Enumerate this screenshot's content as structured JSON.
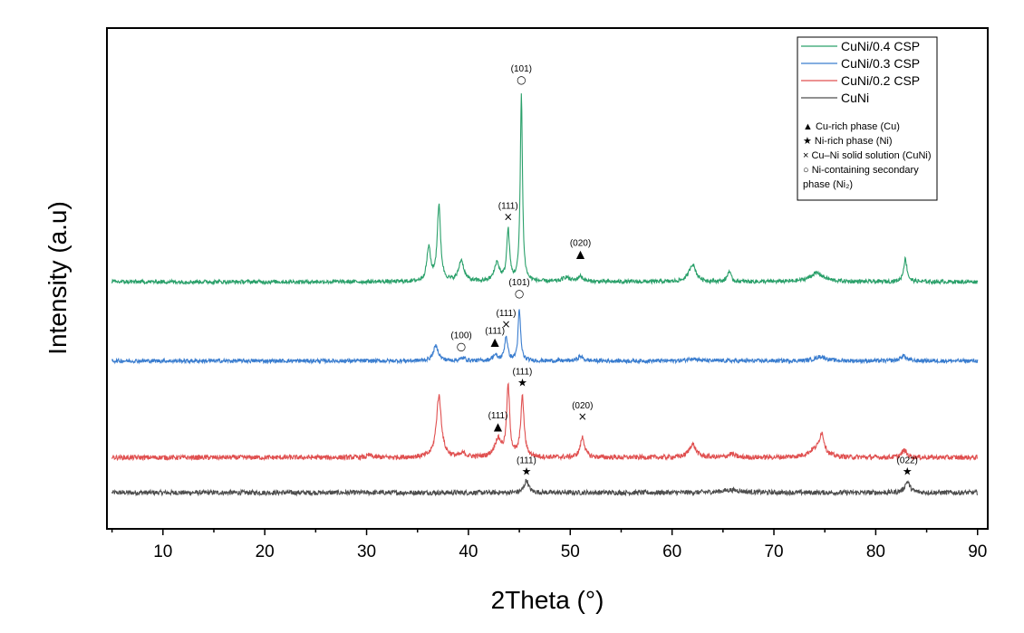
{
  "chart_data": {
    "type": "line",
    "title": "",
    "xlabel": "2Theta (°)",
    "ylabel": "Intensity (a.u)",
    "xlim": [
      4.5,
      91
    ],
    "x_ticks": [
      10,
      20,
      30,
      40,
      50,
      60,
      70,
      80,
      90
    ],
    "yticks_shown": false,
    "grid": false,
    "legend_position": "top-right",
    "series": [
      {
        "name": "CuNi",
        "color": "#4d4d4d",
        "baseline": 0.0,
        "noise": 0.55,
        "peaks": [
          {
            "x": 45.7,
            "height": 2.8,
            "width": 0.25
          },
          {
            "x": 65.8,
            "height": 0.6,
            "width": 1.2
          },
          {
            "x": 83.1,
            "height": 2.5,
            "width": 0.3
          }
        ]
      },
      {
        "name": "CuNi/0.2 CSP",
        "color": "#e05050",
        "baseline": 8.0,
        "noise": 0.55,
        "peaks": [
          {
            "x": 30.3,
            "height": 0.5,
            "width": 0.25
          },
          {
            "x": 37.1,
            "height": 14.0,
            "width": 0.3
          },
          {
            "x": 39.5,
            "height": 0.8,
            "width": 0.3
          },
          {
            "x": 42.9,
            "height": 4.0,
            "width": 0.4
          },
          {
            "x": 43.9,
            "height": 15.8,
            "width": 0.18
          },
          {
            "x": 45.3,
            "height": 13.5,
            "width": 0.2
          },
          {
            "x": 51.2,
            "height": 4.6,
            "width": 0.25
          },
          {
            "x": 62.0,
            "height": 3.0,
            "width": 0.4
          },
          {
            "x": 65.8,
            "height": 0.8,
            "width": 0.35
          },
          {
            "x": 74.7,
            "height": 4.8,
            "width": 0.3
          },
          {
            "x": 74.0,
            "height": 1.5,
            "width": 0.8
          },
          {
            "x": 82.8,
            "height": 1.6,
            "width": 0.3
          }
        ]
      },
      {
        "name": "CuNi/0.3 CSP",
        "color": "#3a7dcf",
        "baseline": 30.0,
        "noise": 0.45,
        "peaks": [
          {
            "x": 36.8,
            "height": 3.4,
            "width": 0.3
          },
          {
            "x": 39.5,
            "height": 0.6,
            "width": 0.3
          },
          {
            "x": 42.6,
            "height": 1.2,
            "width": 0.3
          },
          {
            "x": 43.7,
            "height": 5.5,
            "width": 0.18
          },
          {
            "x": 45.0,
            "height": 11.5,
            "width": 0.15
          },
          {
            "x": 51.0,
            "height": 1.0,
            "width": 0.3
          },
          {
            "x": 62.0,
            "height": 0.6,
            "width": 0.5
          },
          {
            "x": 74.6,
            "height": 1.0,
            "width": 0.6
          },
          {
            "x": 82.7,
            "height": 1.2,
            "width": 0.3
          }
        ]
      },
      {
        "name": "CuNi/0.4 CSP",
        "color": "#2aa06a",
        "baseline": 48.0,
        "noise": 0.45,
        "peaks": [
          {
            "x": 36.1,
            "height": 7.6,
            "width": 0.22
          },
          {
            "x": 37.1,
            "height": 17.2,
            "width": 0.2
          },
          {
            "x": 39.3,
            "height": 4.8,
            "width": 0.3
          },
          {
            "x": 42.8,
            "height": 4.2,
            "width": 0.3
          },
          {
            "x": 43.9,
            "height": 11.5,
            "width": 0.17
          },
          {
            "x": 45.2,
            "height": 42.5,
            "width": 0.13
          },
          {
            "x": 49.6,
            "height": 1.0,
            "width": 0.4
          },
          {
            "x": 51.0,
            "height": 1.2,
            "width": 0.3
          },
          {
            "x": 62.0,
            "height": 4.0,
            "width": 0.4
          },
          {
            "x": 65.6,
            "height": 2.4,
            "width": 0.2
          },
          {
            "x": 74.2,
            "height": 2.0,
            "width": 0.8
          },
          {
            "x": 82.9,
            "height": 5.2,
            "width": 0.2
          }
        ]
      }
    ],
    "annotations": [
      {
        "x": 45.2,
        "y": 93.2,
        "marker": "○",
        "label": "(101)"
      },
      {
        "x": 43.9,
        "y": 62.0,
        "marker": "×",
        "label": "(111)"
      },
      {
        "x": 51.0,
        "y": 53.5,
        "marker": "▲",
        "label": "(020)"
      },
      {
        "x": 45.0,
        "y": 44.5,
        "marker": "○",
        "label": "(101)"
      },
      {
        "x": 43.7,
        "y": 37.5,
        "marker": "×",
        "label": "(111)"
      },
      {
        "x": 42.6,
        "y": 33.5,
        "marker": "▲",
        "label": "(111)"
      },
      {
        "x": 39.3,
        "y": 32.5,
        "marker": "○",
        "label": "(100)"
      },
      {
        "x": 45.3,
        "y": 24.2,
        "marker": "★",
        "label": "(111)"
      },
      {
        "x": 42.9,
        "y": 14.2,
        "marker": "▲",
        "label": "(111)"
      },
      {
        "x": 51.2,
        "y": 16.5,
        "marker": "×",
        "label": "(020)"
      },
      {
        "x": 45.7,
        "y": 4.0,
        "marker": "★",
        "label": "(111)"
      },
      {
        "x": 83.1,
        "y": 4.0,
        "marker": "★",
        "label": "(022)"
      }
    ],
    "legend": {
      "series_order": [
        "CuNi/0.4 CSP",
        "CuNi/0.3 CSP",
        "CuNi/0.2 CSP",
        "CuNi"
      ],
      "marker_lines": [
        "▲ Cu-rich phase (Cu)",
        "★ Ni-rich phase (Ni)",
        "× Cu–Ni solid solution (CuNi)",
        "○ Ni-containing secondary",
        "phase (Ni₂)"
      ]
    }
  }
}
